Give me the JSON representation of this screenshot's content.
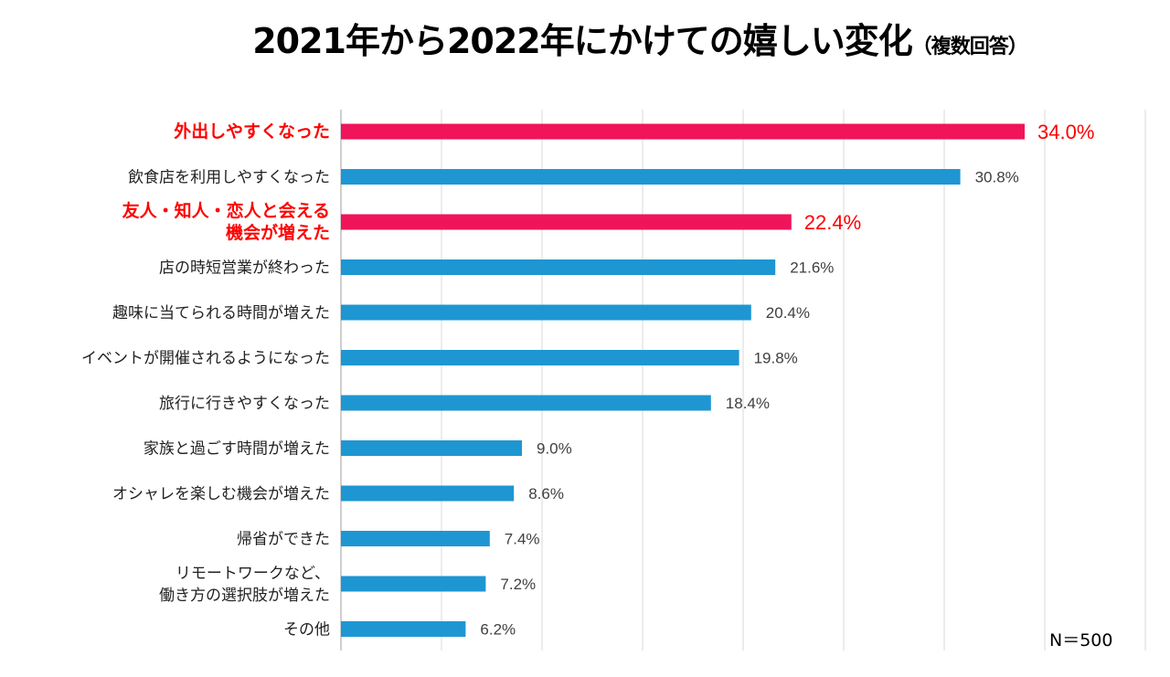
{
  "chart_data": {
    "type": "bar",
    "orientation": "horizontal",
    "title": "2021年から2022年にかけての嬉しい変化",
    "subtitle": "（複数回答）",
    "note": "N＝500",
    "xlim": [
      0,
      40
    ],
    "grid": true,
    "unit": "%",
    "categories": [
      "外出しやすくなった",
      "飲食店を利用しやすくなった",
      "友人・知人・恋人と会える\n機会が増えた",
      "店の時短営業が終わった",
      "趣味に当てられる時間が増えた",
      "イベントが開催されるようになった",
      "旅行に行きやすくなった",
      "家族と過ごす時間が増えた",
      "オシャレを楽しむ機会が増えた",
      "帰省ができた",
      "リモートワークなど、\n働き方の選択肢が増えた",
      "その他"
    ],
    "values": [
      34.0,
      30.8,
      22.4,
      21.6,
      20.4,
      19.8,
      18.4,
      9.0,
      8.6,
      7.4,
      7.2,
      6.2
    ],
    "value_labels": [
      "34.0%",
      "30.8%",
      "22.4%",
      "21.6%",
      "20.4%",
      "19.8%",
      "18.4%",
      "9.0%",
      "8.6%",
      "7.4%",
      "7.2%",
      "6.2%"
    ],
    "highlighted": [
      true,
      false,
      true,
      false,
      false,
      false,
      false,
      false,
      false,
      false,
      false,
      false
    ],
    "colors": {
      "highlight_bar": "#f0145a",
      "normal_bar": "#1e96d2",
      "highlight_text": "#ff0000",
      "normal_text": "#404040",
      "grid": "#d9d9d9"
    }
  }
}
